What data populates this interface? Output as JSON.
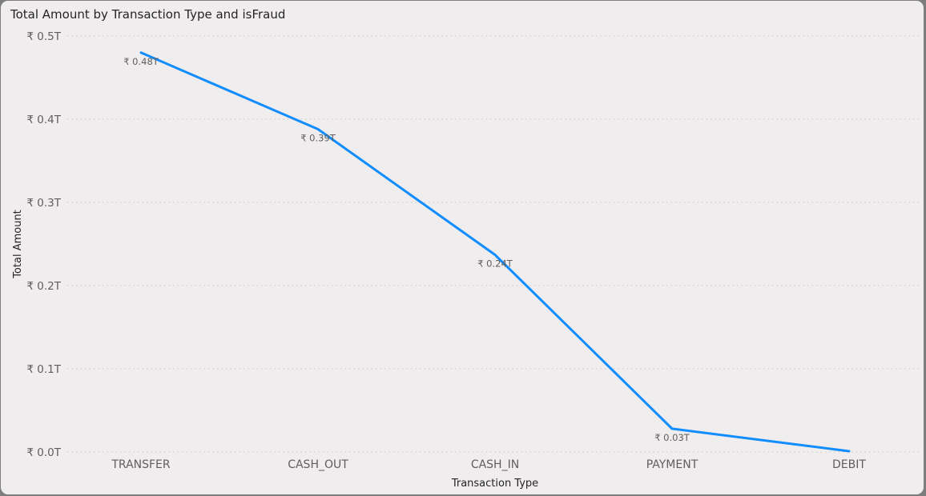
{
  "card": {
    "title": "Total Amount by Transaction Type and isFraud"
  },
  "chart_data": {
    "type": "line",
    "title": "Total Amount by Transaction Type and isFraud",
    "xlabel": "Transaction Type",
    "ylabel": "Total Amount",
    "categories": [
      "TRANSFER",
      "CASH_OUT",
      "CASH_IN",
      "PAYMENT",
      "DEBIT"
    ],
    "values": [
      0.48,
      0.388,
      0.237,
      0.028,
      0.001
    ],
    "data_labels": [
      "₹ 0.48T",
      "₹ 0.39T",
      "₹ 0.24T",
      "₹ 0.03T",
      ""
    ],
    "ylim": [
      0,
      0.5
    ],
    "yticks": [
      0.5,
      0.4,
      0.3,
      0.2,
      0.1,
      0.0
    ],
    "ytick_labels": [
      "₹ 0.5T",
      "₹ 0.4T",
      "₹ 0.3T",
      "₹ 0.2T",
      "₹ 0.1T",
      "₹ 0.0T"
    ],
    "grid": true,
    "line_color": "#118dff",
    "grid_color": "#c8c6c4"
  }
}
